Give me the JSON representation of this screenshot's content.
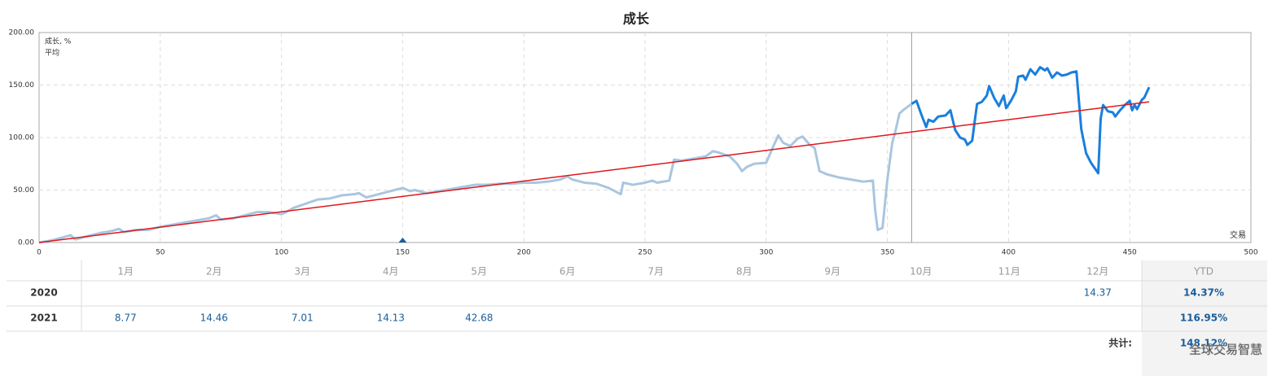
{
  "chart_data": {
    "type": "line",
    "title": "成长",
    "x_label": "交易",
    "xlim": [
      0,
      500
    ],
    "xticks": [
      0,
      50,
      100,
      150,
      200,
      250,
      300,
      350,
      400,
      450,
      500
    ],
    "ylim": [
      0,
      200
    ],
    "yticks": [
      {
        "value": 0,
        "label": "0.00"
      },
      {
        "value": 50,
        "label": "50.00"
      },
      {
        "value": 100,
        "label": "100.00"
      },
      {
        "value": 150,
        "label": "150.00"
      },
      {
        "value": 200,
        "label": "200.00"
      }
    ],
    "grid": true,
    "legend": "top-left",
    "vline": 360,
    "event_markers": [
      150
    ],
    "marker_color": "#1a5e9a",
    "series": [
      {
        "name": "成长, %",
        "color": "#1a7fdc",
        "faded_color": "#a9c6e0",
        "x": [
          0,
          5,
          10,
          13,
          15,
          20,
          25,
          30,
          33,
          35,
          40,
          45,
          50,
          55,
          60,
          65,
          70,
          73,
          75,
          80,
          85,
          90,
          95,
          100,
          102,
          105,
          110,
          115,
          120,
          125,
          130,
          132,
          135,
          140,
          145,
          150,
          153,
          155,
          160,
          165,
          170,
          175,
          180,
          185,
          190,
          195,
          200,
          205,
          210,
          215,
          218,
          220,
          225,
          230,
          235,
          240,
          241,
          245,
          250,
          253,
          255,
          260,
          262,
          265,
          270,
          275,
          278,
          280,
          285,
          288,
          290,
          292,
          295,
          300,
          303,
          305,
          307,
          310,
          313,
          315,
          318,
          320,
          322,
          325,
          330,
          335,
          340,
          344,
          345,
          346,
          348,
          350,
          352,
          353,
          355,
          357,
          360,
          362,
          364,
          366,
          367,
          369,
          371,
          374,
          376,
          378,
          380,
          382,
          383,
          385,
          386,
          387,
          389,
          391,
          392,
          394,
          396,
          398,
          399,
          401,
          403,
          404,
          406,
          407,
          409,
          411,
          413,
          415,
          416,
          418,
          420,
          422,
          424,
          426,
          428,
          430,
          432,
          434,
          437,
          438,
          439,
          441,
          443,
          444,
          446,
          448,
          450,
          451,
          452,
          453,
          455,
          456,
          458
        ],
        "values": [
          0,
          2,
          5,
          7,
          3,
          6,
          9,
          11,
          13,
          10,
          12,
          12,
          15,
          17,
          19,
          21,
          23,
          26,
          22,
          23,
          26,
          29,
          29,
          27,
          29,
          33,
          37,
          41,
          42,
          45,
          46,
          47,
          43,
          46,
          49,
          52,
          49,
          50,
          47,
          49,
          51,
          53,
          55,
          55,
          56,
          56,
          57,
          57,
          58,
          60,
          63,
          60,
          57,
          56,
          52,
          46,
          57,
          55,
          57,
          59,
          57,
          59,
          79,
          78,
          80,
          82,
          87,
          86,
          82,
          75,
          68,
          72,
          75,
          76,
          92,
          102,
          95,
          92,
          99,
          101,
          93,
          90,
          68,
          65,
          62,
          60,
          58,
          59,
          30,
          12,
          14,
          60,
          95,
          103,
          123,
          127,
          132,
          135,
          122,
          110,
          117,
          115,
          120,
          121,
          126,
          107,
          100,
          98,
          93,
          97,
          115,
          132,
          134,
          140,
          149,
          138,
          130,
          140,
          128,
          135,
          144,
          158,
          159,
          155,
          165,
          160,
          167,
          164,
          166,
          157,
          162,
          159,
          160,
          162,
          163,
          108,
          85,
          76,
          66,
          118,
          131,
          125,
          124,
          120,
          126,
          131,
          135,
          126,
          131,
          127,
          136,
          138,
          148
        ]
      },
      {
        "name": "平均",
        "color": "#e0161b",
        "x": [
          0,
          458
        ],
        "values": [
          0,
          134
        ]
      }
    ]
  },
  "table": {
    "columns": [
      "1月",
      "2月",
      "3月",
      "4月",
      "5月",
      "6月",
      "7月",
      "8月",
      "9月",
      "10月",
      "11月",
      "12月",
      "YTD"
    ],
    "rows": [
      {
        "year": "2020",
        "cells": [
          null,
          null,
          null,
          null,
          null,
          null,
          null,
          null,
          null,
          null,
          null,
          "14.37"
        ],
        "ytd": "14.37%"
      },
      {
        "year": "2021",
        "cells": [
          "8.77",
          "14.46",
          "7.01",
          "14.13",
          "42.68",
          null,
          null,
          null,
          null,
          null,
          null,
          null
        ],
        "ytd": "116.95%"
      }
    ],
    "total_label": "共计:",
    "total": "148.12%"
  },
  "watermark": "全球交易智慧"
}
